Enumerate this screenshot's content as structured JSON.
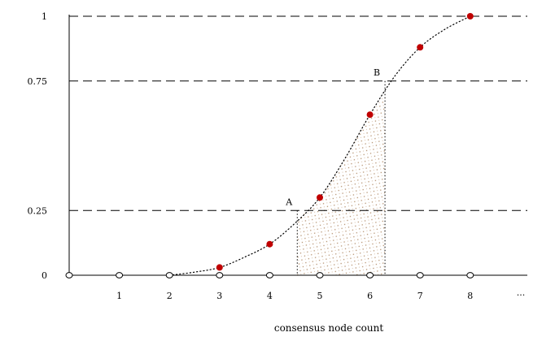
{
  "chart_data": {
    "type": "scatter",
    "title": "",
    "xlabel": "consensus node count",
    "ylabel": "",
    "x_tick_labels": [
      "1",
      "2",
      "3",
      "4",
      "5",
      "6",
      "7",
      "8"
    ],
    "x_ellipsis": "...",
    "y_tick_labels": [
      "0",
      "0.25",
      "0.75",
      "1"
    ],
    "y_ticks": [
      0,
      0.25,
      0.75,
      1
    ],
    "xlim": [
      0,
      8.6
    ],
    "ylim": [
      0,
      1
    ],
    "grid": false,
    "reference_lines_y": [
      0.25,
      0.75
    ],
    "series": [
      {
        "marker": "filled-circle",
        "color": "#c00000",
        "x": [
          3,
          4,
          5,
          6,
          7,
          8
        ],
        "y": [
          0.03,
          0.12,
          0.3,
          0.62,
          0.88,
          1.0
        ]
      },
      {
        "marker": "open-circle",
        "color": "#000000",
        "x": [
          0,
          1,
          2,
          3,
          4,
          5,
          6,
          7,
          8
        ],
        "y": [
          0,
          0,
          0,
          0,
          0,
          0,
          0,
          0,
          0
        ]
      }
    ],
    "curve": {
      "style": "dotted",
      "x": [
        2.0,
        2.5,
        3,
        3.5,
        4,
        4.5,
        5,
        5.5,
        6,
        6.5,
        7,
        7.5,
        8
      ],
      "y": [
        0.0,
        0.012,
        0.03,
        0.07,
        0.12,
        0.2,
        0.3,
        0.45,
        0.62,
        0.77,
        0.88,
        0.95,
        1.0
      ]
    },
    "annotations": [
      {
        "label": "A",
        "x": 4.55,
        "y": 0.25
      },
      {
        "label": "B",
        "x": 6.3,
        "y": 0.75
      }
    ],
    "shaded_region": {
      "x_from": 4.55,
      "x_to": 6.3,
      "fill": "hatched-brown"
    }
  }
}
